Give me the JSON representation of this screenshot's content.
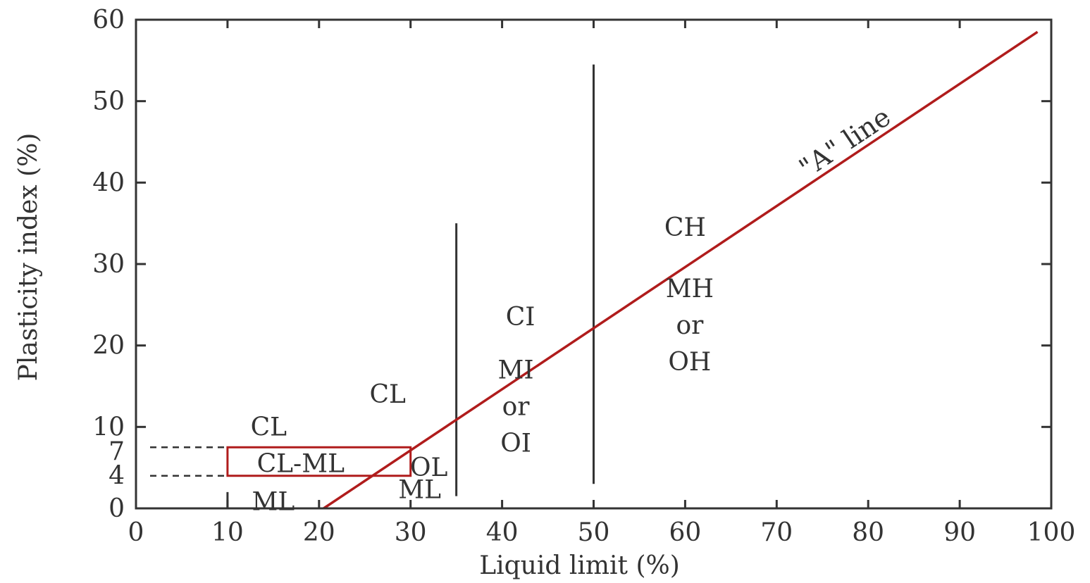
{
  "chart_data": {
    "type": "line",
    "xlabel": "Liquid limit (%)",
    "ylabel": "Plasticity index (%)",
    "xlim": [
      0,
      100
    ],
    "ylim": [
      0,
      60
    ],
    "x_ticks": [
      "0",
      "10",
      "20",
      "30",
      "40",
      "50",
      "60",
      "70",
      "80",
      "90",
      "100"
    ],
    "y_ticks": [
      {
        "value": 0,
        "label": "0"
      },
      {
        "value": 4,
        "label": "4"
      },
      {
        "value": 7,
        "label": "7"
      },
      {
        "value": 10,
        "label": "10"
      },
      {
        "value": 20,
        "label": "20"
      },
      {
        "value": 30,
        "label": "30"
      },
      {
        "value": 40,
        "label": "40"
      },
      {
        "value": 50,
        "label": "50"
      },
      {
        "value": 60,
        "label": "60"
      }
    ],
    "a_line": {
      "label": "\"A\" line",
      "label_at": {
        "x": 78,
        "y": 44
      },
      "points": [
        {
          "x": 20.5,
          "y": 0
        },
        {
          "x": 98.5,
          "y": 58.5
        }
      ],
      "color": "#b01c1c"
    },
    "boundaries": [
      {
        "x": 35,
        "y_from": 1.5,
        "y_to": 35
      },
      {
        "x": 50,
        "y_from": 3,
        "y_to": 54.5
      }
    ],
    "cl_ml_zone": {
      "x_from": 10,
      "x_to": 30,
      "y_from": 4,
      "y_to": 7.5,
      "color": "#b01c1c"
    },
    "dashed_guides": [
      {
        "y": 7.5,
        "x_from": 0,
        "x_to": 10
      },
      {
        "y": 4,
        "x_from": 0,
        "x_to": 10
      }
    ],
    "regions": [
      {
        "lines": [
          "CL"
        ],
        "x": 14.5,
        "y": 10
      },
      {
        "lines": [
          "CL-ML"
        ],
        "x": 18,
        "y": 5.5
      },
      {
        "lines": [
          "ML"
        ],
        "x": 15,
        "y": 0.8
      },
      {
        "lines": [
          "CL"
        ],
        "x": 27.5,
        "y": 14
      },
      {
        "lines": [
          "OL"
        ],
        "x": 32,
        "y": 5
      },
      {
        "lines": [
          "ML"
        ],
        "x": 31,
        "y": 2.3
      },
      {
        "lines": [
          "CI"
        ],
        "x": 42,
        "y": 23.5
      },
      {
        "lines": [
          "MI",
          "or",
          "OI"
        ],
        "x": 41.5,
        "y": 12.5
      },
      {
        "lines": [
          "CH"
        ],
        "x": 60,
        "y": 34.5
      },
      {
        "lines": [
          "MH",
          "or",
          "OH"
        ],
        "x": 60.5,
        "y": 22.5
      }
    ]
  }
}
